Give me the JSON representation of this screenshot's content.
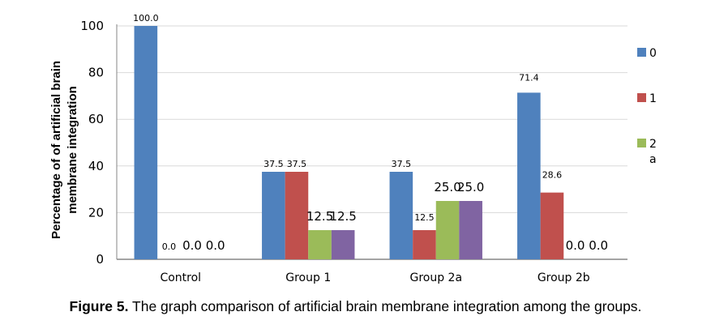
{
  "chart_data": {
    "type": "bar",
    "title": "",
    "xlabel": "",
    "ylabel": [
      "Percentage of of artificial brain",
      "membrane integration"
    ],
    "ylim": [
      0,
      100
    ],
    "yticks": [
      0,
      20,
      40,
      60,
      80,
      100
    ],
    "grid": true,
    "categories": [
      "Control",
      "Group 1",
      "Group 2a",
      "Group 2b"
    ],
    "series": [
      {
        "name": "0",
        "color": "#4f81bd",
        "values": [
          100.0,
          37.5,
          37.5,
          71.4
        ],
        "labels": [
          "100.0",
          "37.5",
          "37.5",
          "71.4"
        ]
      },
      {
        "name": "1",
        "color": "#c0504d",
        "values": [
          0.0,
          37.5,
          12.5,
          28.6
        ],
        "labels": [
          "0.0",
          "37.5",
          "12.5",
          "28.6"
        ]
      },
      {
        "name": "2a",
        "color": "#9bbb59",
        "values": [
          0.0,
          12.5,
          25.0,
          0.0
        ],
        "labels": [
          "0.0",
          "12.5",
          "25.0",
          "0.0"
        ]
      },
      {
        "name": "",
        "color": "#8064a2",
        "values": [
          0.0,
          12.5,
          25.0,
          0.0
        ],
        "labels": [
          "0.0",
          "12.5",
          "25.0",
          "0.0"
        ]
      }
    ],
    "legend": {
      "placement": "right",
      "entries": [
        {
          "line1": "0"
        },
        {
          "line1": "1"
        },
        {
          "line1": "2",
          "line2": "a"
        }
      ]
    }
  },
  "caption": {
    "prefix": "Figure 5.",
    "text": " The graph comparison of artificial brain membrane integration among the groups."
  }
}
